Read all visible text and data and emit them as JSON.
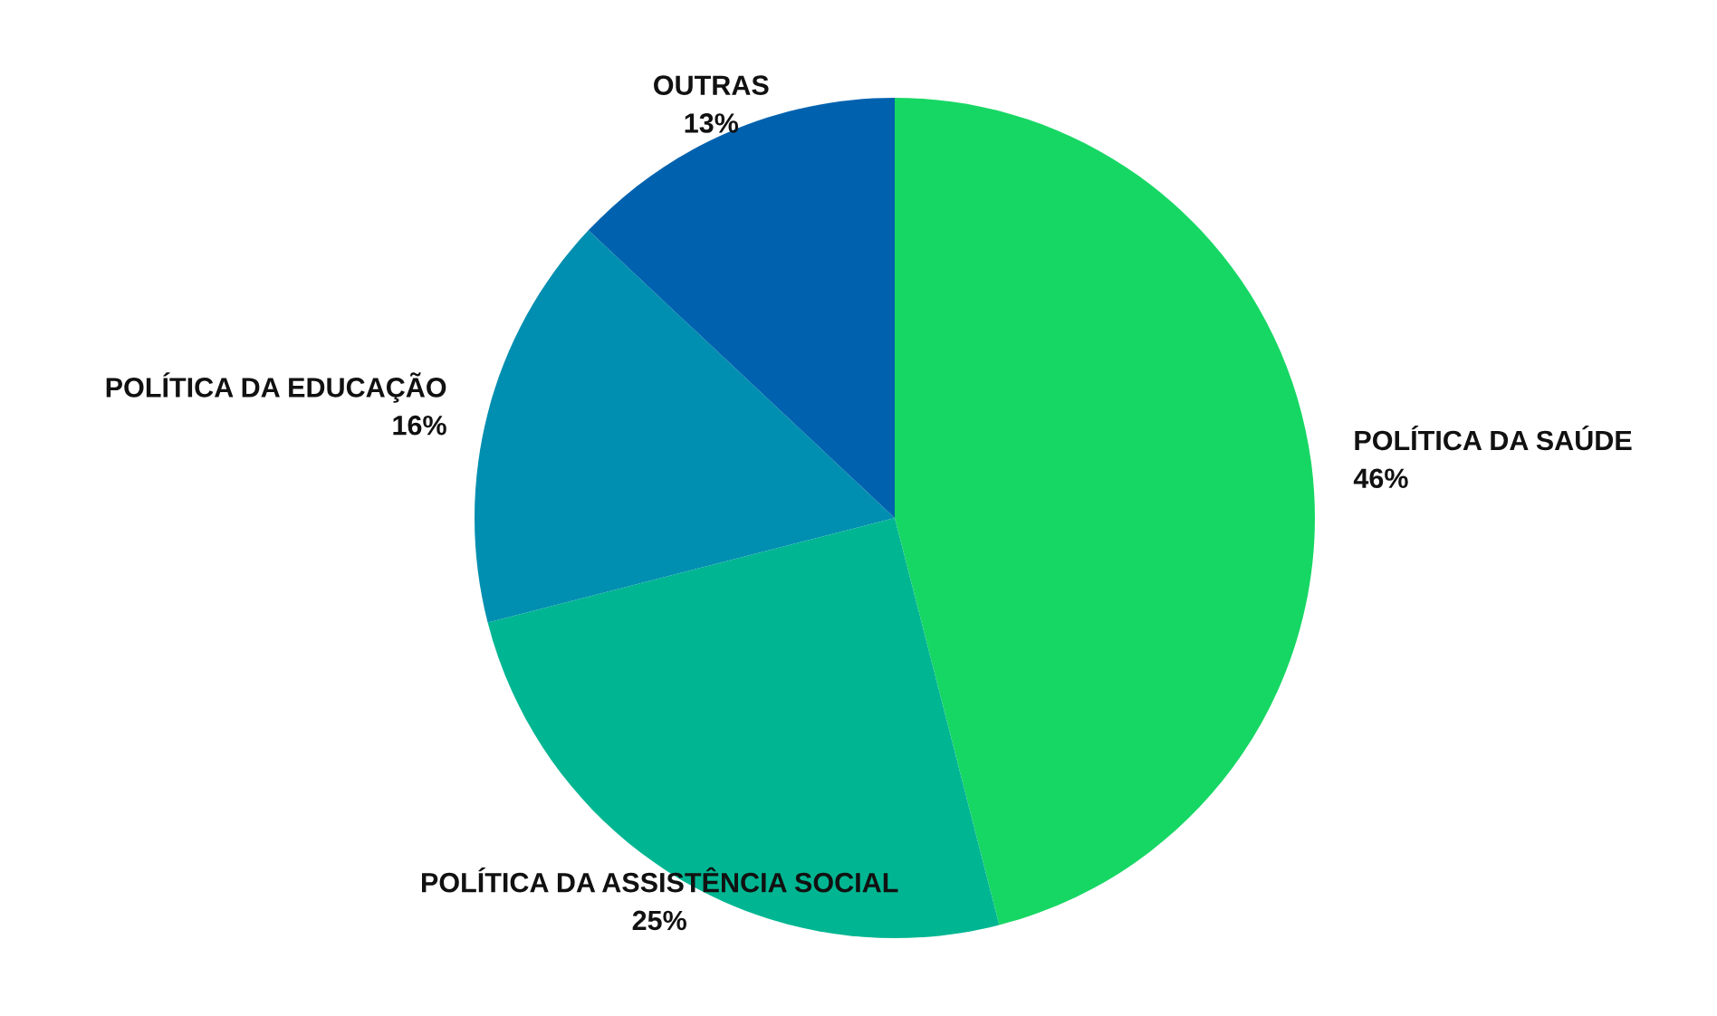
{
  "chart_data": {
    "type": "pie",
    "categories": [
      "POLÍTICA DA SAÚDE",
      "POLÍTICA DA ASSISTÊNCIA SOCIAL",
      "POLÍTICA DA EDUCAÇÃO",
      "OUTRAS"
    ],
    "values": [
      46,
      25,
      16,
      13
    ],
    "value_labels": [
      "46%",
      "25%",
      "16%",
      "13%"
    ],
    "colors": [
      "#17d764",
      "#00b692",
      "#008fb0",
      "#0062ae"
    ],
    "legend": false
  }
}
